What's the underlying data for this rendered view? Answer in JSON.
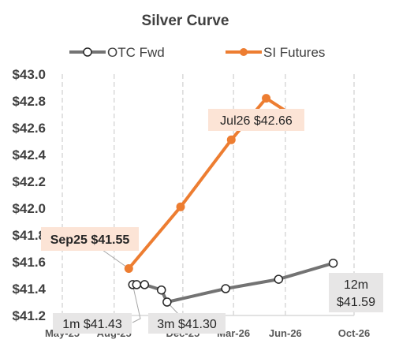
{
  "chart_data": {
    "type": "line",
    "title": "Silver Curve",
    "xlabel": "",
    "ylabel": "",
    "x_axis": {
      "type": "date",
      "ticks": [
        {
          "date": "2025-05-01",
          "label": "May-25"
        },
        {
          "date": "2025-08-01",
          "label": "Aug-25"
        },
        {
          "date": "2025-12-01",
          "label": "Dec-25"
        },
        {
          "date": "2026-03-01",
          "label": "Mar-26"
        },
        {
          "date": "2026-06-01",
          "label": "Jun-26"
        },
        {
          "date": "2026-10-01",
          "label": "Oct-26"
        }
      ],
      "range": [
        "2025-05-01",
        "2026-10-01"
      ]
    },
    "y_axis": {
      "range": [
        41.2,
        43.0
      ],
      "ticks": [
        41.2,
        41.4,
        41.6,
        41.8,
        42.0,
        42.2,
        42.4,
        42.6,
        42.8,
        43.0
      ],
      "tick_labels": [
        "$41.2",
        "$41.4",
        "$41.6",
        "$41.8",
        "$42.0",
        "$42.2",
        "$42.4",
        "$42.6",
        "$42.8",
        "$43.0"
      ]
    },
    "grid": {
      "vertical": true,
      "horizontal": false,
      "style": "dashed"
    },
    "legend": {
      "position": "top"
    },
    "series": [
      {
        "name": "OTC Fwd",
        "color": "#737373",
        "marker": "open-circle",
        "points": [
          {
            "x": "2025-09-03",
            "y": 41.43
          },
          {
            "x": "2025-09-10",
            "y": 41.43
          },
          {
            "x": "2025-09-24",
            "y": 41.43
          },
          {
            "x": "2025-10-24",
            "y": 41.39
          },
          {
            "x": "2025-11-03",
            "y": 41.3
          },
          {
            "x": "2026-02-15",
            "y": 41.4
          },
          {
            "x": "2026-05-20",
            "y": 41.47
          },
          {
            "x": "2026-08-25",
            "y": 41.59
          }
        ]
      },
      {
        "name": "SI Futures",
        "color": "#ED7D31",
        "marker": "filled-circle",
        "points": [
          {
            "x": "2025-08-27",
            "y": 41.55
          },
          {
            "x": "2025-11-27",
            "y": 42.01
          },
          {
            "x": "2026-02-25",
            "y": 42.51
          },
          {
            "x": "2026-04-28",
            "y": 42.82
          },
          {
            "x": "2026-06-26",
            "y": 42.66
          }
        ]
      }
    ],
    "annotations": [
      {
        "text": "Sep25  $41.55",
        "series": "SI Futures",
        "point": 0,
        "bold": true,
        "bg": "#FCE4D6"
      },
      {
        "text": "Jul26  $42.66",
        "series": "SI Futures",
        "point": 4,
        "bold": false,
        "bg": "#FCE4D6"
      },
      {
        "text": "1m  $41.43",
        "series": "OTC Fwd",
        "point": 0,
        "bold": false,
        "bg": "#E7E6E6"
      },
      {
        "text": "3m  $41.30",
        "series": "OTC Fwd",
        "point": 4,
        "bold": false,
        "bg": "#E7E6E6"
      },
      {
        "lines": [
          "12m",
          "$41.59"
        ],
        "series": "OTC Fwd",
        "point": 7,
        "bold": false,
        "bg": "#E7E6E6"
      }
    ]
  }
}
